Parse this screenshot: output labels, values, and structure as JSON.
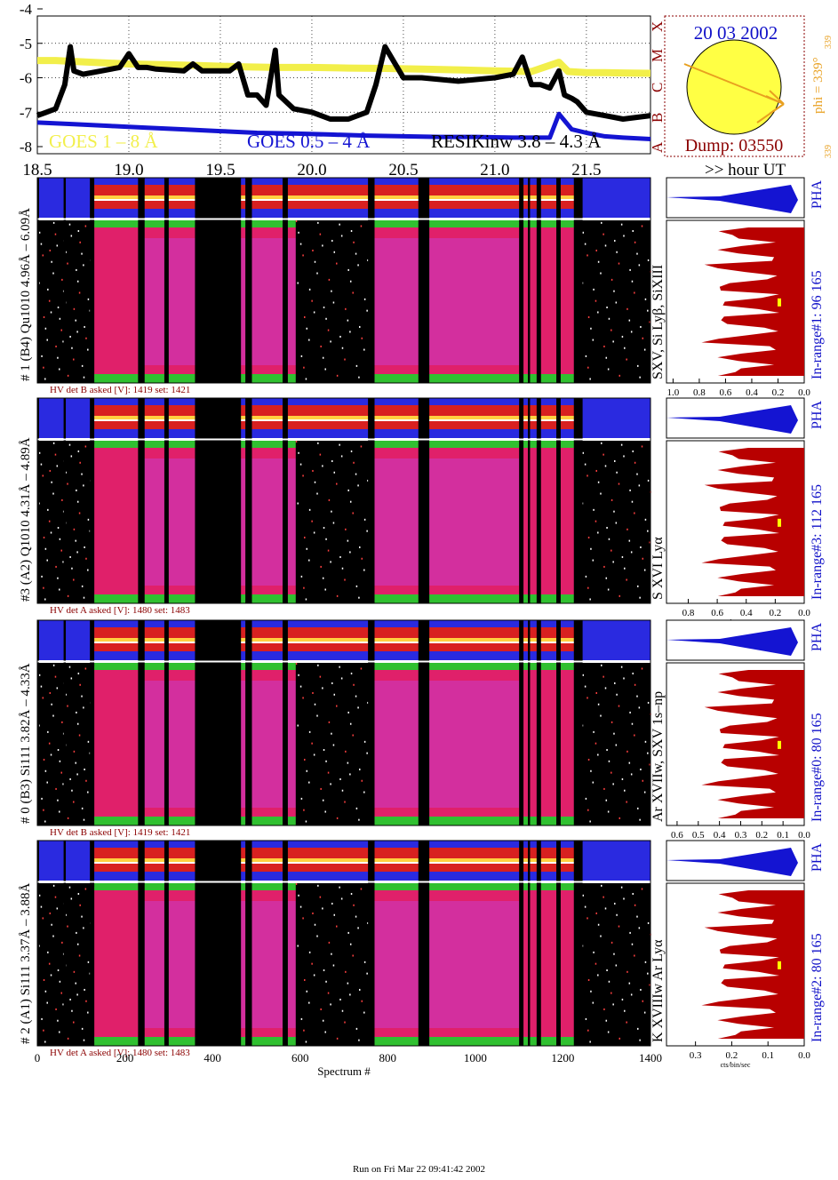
{
  "top": {
    "title": "",
    "ylim": [
      -8,
      -4
    ],
    "y_ticks": [
      "-4",
      "-5",
      "-6",
      "-7",
      "-8"
    ],
    "x_ticks": [
      "18.5",
      "19.0",
      "19.5",
      "20.0",
      "20.5",
      "21.0",
      "21.5"
    ],
    "x_unit_label": ">> hour UT",
    "class_letters": [
      "A",
      "B",
      "C",
      "M",
      "X"
    ],
    "legend": [
      "GOES 1 – 8 Å",
      "GOES 0.5 – 4 Å",
      "RESIKinw 3.8 – 4.3 Å"
    ],
    "colors": {
      "goes_long": "#f2ef4a",
      "goes_short": "#1414d2",
      "resik": "#000000",
      "class_letters": "#8b0000"
    }
  },
  "chart_data": [
    {
      "type": "line",
      "title": "",
      "xlabel": "",
      "ylabel": "",
      "xlim": [
        18.5,
        21.85
      ],
      "ylim": [
        -8,
        -4
      ],
      "series": [
        {
          "name": "GOES 1 – 8 Å",
          "x": [
            18.5,
            18.6,
            18.8,
            19.0,
            19.2,
            19.4,
            19.6,
            19.8,
            20.0,
            20.2,
            20.4,
            20.6,
            20.8,
            21.0,
            21.2,
            21.35,
            21.4,
            21.5,
            21.6,
            21.7,
            21.85
          ],
          "y": [
            -5.5,
            -5.5,
            -5.55,
            -5.6,
            -5.62,
            -5.65,
            -5.68,
            -5.7,
            -5.7,
            -5.72,
            -5.73,
            -5.75,
            -5.77,
            -5.8,
            -5.82,
            -5.55,
            -5.82,
            -5.85,
            -5.85,
            -5.86,
            -5.87
          ]
        },
        {
          "name": "GOES 0.5 – 4 Å",
          "x": [
            18.5,
            18.7,
            18.9,
            19.1,
            19.3,
            19.5,
            19.7,
            19.9,
            20.1,
            20.3,
            20.5,
            20.7,
            20.9,
            21.1,
            21.3,
            21.35,
            21.42,
            21.5,
            21.6,
            21.7,
            21.85
          ],
          "y": [
            -7.3,
            -7.35,
            -7.4,
            -7.45,
            -7.5,
            -7.55,
            -7.6,
            -7.62,
            -7.65,
            -7.68,
            -7.7,
            -7.72,
            -7.72,
            -7.74,
            -7.74,
            -7.05,
            -7.5,
            -7.6,
            -7.7,
            -7.74,
            -7.78
          ]
        },
        {
          "name": "RESIKinw 3.8 – 4.3 Å",
          "x": [
            18.5,
            18.55,
            18.6,
            18.65,
            18.68,
            18.7,
            18.75,
            18.85,
            18.95,
            19.0,
            19.05,
            19.1,
            19.15,
            19.3,
            19.35,
            19.4,
            19.55,
            19.6,
            19.65,
            19.7,
            19.75,
            19.8,
            19.82,
            19.9,
            20.0,
            20.1,
            20.2,
            20.3,
            20.35,
            20.4,
            20.5,
            20.6,
            20.8,
            21.0,
            21.1,
            21.15,
            21.2,
            21.25,
            21.3,
            21.35,
            21.38,
            21.42,
            21.45,
            21.5,
            21.6,
            21.7,
            21.85
          ],
          "y": [
            -7.1,
            -7.0,
            -6.9,
            -6.2,
            -5.1,
            -5.8,
            -5.9,
            -5.8,
            -5.7,
            -5.3,
            -5.7,
            -5.7,
            -5.75,
            -5.8,
            -5.6,
            -5.8,
            -5.8,
            -5.6,
            -6.5,
            -6.5,
            -6.8,
            -5.2,
            -6.5,
            -6.9,
            -7.0,
            -7.2,
            -7.2,
            -7.0,
            -6.2,
            -5.1,
            -6.0,
            -6.0,
            -6.1,
            -6.0,
            -5.9,
            -5.4,
            -6.2,
            -6.2,
            -6.3,
            -5.8,
            -6.5,
            -6.6,
            -6.7,
            -7.0,
            -7.1,
            -7.2,
            -7.1
          ]
        }
      ]
    },
    {
      "type": "heatmap",
      "xlabel": "Spectrum #",
      "xlim": [
        0,
        1400
      ],
      "x_ticks": [
        "0",
        "200",
        "400",
        "600",
        "800",
        "1000",
        "1200",
        "1400"
      ],
      "gaps": [
        [
          0,
          4
        ],
        [
          60,
          65
        ],
        [
          120,
          130
        ],
        [
          230,
          245
        ],
        [
          290,
          300
        ],
        [
          360,
          465
        ],
        [
          475,
          490
        ],
        [
          560,
          572
        ],
        [
          755,
          770
        ],
        [
          870,
          895
        ],
        [
          1100,
          1110
        ],
        [
          1120,
          1125
        ],
        [
          1140,
          1150
        ],
        [
          1185,
          1195
        ],
        [
          1225,
          1245
        ]
      ],
      "panels": [
        {
          "label": "# 1 (B4) Qu1010 4.96Å – 6.09Å",
          "lines": "SXV, Si Lyβ, SiXIII",
          "in_range": "In-range#1:   96 165",
          "hv": "HV det B asked [V]:  1419 set:  1421",
          "pha_label": "PHA"
        },
        {
          "label": "#3 (A2) Q1010  4.31Å – 4.89Å",
          "lines": "S XVI Lyα",
          "in_range": "In-range#3:   112 165",
          "hv": "HV det A asked [V]:  1480 set:  1483",
          "pha_label": "PHA"
        },
        {
          "label": "# 0 (B3) Si111  3.82Å – 4.33Å",
          "lines": "Ar XVIIw,  SXV 1s–np",
          "in_range": "In-range#0:   80 165",
          "hv": "HV det B asked [V]:  1419 set:  1421",
          "pha_label": "PHA"
        },
        {
          "label": "# 2 (A1) Si111  3.37Å – 3.88Å",
          "lines": "K XVIIIw  Ar Lyα",
          "in_range": "In-range#2:   80 165",
          "hv": "HV det A asked [V]:  1480 set:  1483",
          "pha_label": "PHA"
        }
      ]
    },
    {
      "type": "area",
      "xlabel": "cts/bin/sec",
      "panels": [
        {
          "x_ticks": [
            "1.0",
            "0.8",
            "0.6",
            "0.4",
            "0.2",
            "0.0"
          ],
          "xlim": [
            1.05,
            0.0
          ]
        },
        {
          "x_ticks": [
            "0.8",
            "0.6",
            "0.4",
            "0.2",
            "0.0"
          ],
          "xlim": [
            0.95,
            0.0
          ]
        },
        {
          "x_ticks": [
            "0.6",
            "0.5",
            "0.4",
            "0.3",
            "0.2",
            "0.1",
            "0.0"
          ],
          "xlim": [
            0.65,
            0.0
          ]
        },
        {
          "x_ticks": [
            "0.3",
            "0.2",
            "0.1",
            "0.0"
          ],
          "xlim": [
            0.38,
            0.0
          ]
        }
      ]
    }
  ],
  "sun": {
    "date": "20 03 2002",
    "dump": "Dump: 03550",
    "phi": "phi = 339°",
    "phi_sub": "339",
    "phi_corner": "339"
  },
  "footer": "Run on Fri Mar 22 09:41:42 2002"
}
